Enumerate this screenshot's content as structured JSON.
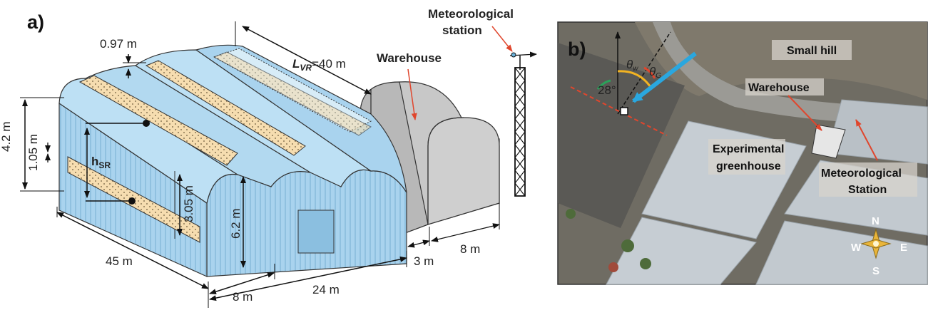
{
  "panel_a": {
    "label": "a)",
    "dim_vent_gap": "0.97 m",
    "dim_lvr_symbol": "L",
    "dim_lvr_sub": "VR",
    "dim_lvr_value": "=40 m",
    "warehouse_label": "Warehouse",
    "met_station_line1": "Meteorological",
    "met_station_line2": "station",
    "dim_height_42": "4.2 m",
    "dim_height_105": "1.05 m",
    "dim_hsr_symbol": "h",
    "dim_hsr_sub": "SR",
    "dim_height_305": "3.05 m",
    "dim_height_62": "6.2 m",
    "dim_length_45": "45 m",
    "dim_span_8": "8 m",
    "dim_width_24": "24 m",
    "dim_gap_3": "3 m",
    "dim_warehouse_8": "8 m"
  },
  "panel_b": {
    "label": "b)",
    "small_hill": "Small hill",
    "warehouse": "Warehouse",
    "greenhouse_line1": "Experimental",
    "greenhouse_line2": "greenhouse",
    "met_line1": "Meteorological",
    "met_line2": "Station",
    "angle_28": "28°",
    "theta_w_symbol": "θ",
    "theta_w_sub": "w",
    "theta_g_symbol": "θ",
    "theta_g_sub": "G",
    "compass_n": "N",
    "compass_s": "S",
    "compass_e": "E",
    "compass_w": "W"
  },
  "colors": {
    "greenhouse_blue": "#a9d3ee",
    "vent_tan": "#f6ddb0",
    "warehouse_grey": "#c8c8c8",
    "arrow_red": "#e0462d",
    "wind_arrow": "#2aa7df",
    "satellite_bg": "#6f6c63"
  }
}
